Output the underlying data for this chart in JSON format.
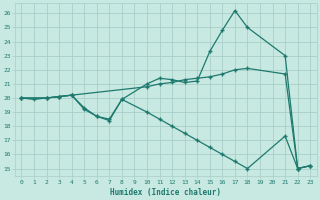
{
  "xlabel": "Humidex (Indice chaleur)",
  "bg_color": "#c8e8e2",
  "grid_color": "#a8cfc8",
  "line_color": "#1e7a6e",
  "xlim": [
    -0.5,
    23.5
  ],
  "ylim": [
    14.5,
    26.7
  ],
  "yticks": [
    15,
    16,
    17,
    18,
    19,
    20,
    21,
    22,
    23,
    24,
    25,
    26
  ],
  "xticks": [
    0,
    1,
    2,
    3,
    4,
    5,
    6,
    7,
    8,
    9,
    10,
    11,
    12,
    13,
    14,
    15,
    16,
    17,
    18,
    19,
    20,
    21,
    22,
    23
  ],
  "line1_x": [
    0,
    1,
    2,
    3,
    4,
    5,
    6,
    7,
    8,
    10,
    11,
    12,
    13,
    14,
    15,
    16,
    17,
    18,
    21,
    22,
    23
  ],
  "line1_y": [
    20,
    19.9,
    20,
    20.1,
    20.2,
    19.3,
    18.7,
    18.5,
    19.9,
    21.0,
    21.4,
    21.3,
    21.1,
    21.2,
    23.3,
    24.8,
    26.2,
    25.0,
    23.0,
    15.0,
    15.2
  ],
  "line2_x": [
    0,
    2,
    3,
    4,
    10,
    11,
    12,
    13,
    14,
    15,
    16,
    17,
    18,
    21,
    22,
    23
  ],
  "line2_y": [
    20,
    20,
    20.1,
    20.2,
    20.8,
    21.0,
    21.1,
    21.3,
    21.4,
    21.5,
    21.7,
    22.0,
    22.1,
    21.7,
    15.0,
    15.2
  ],
  "line3_x": [
    0,
    2,
    3,
    4,
    5,
    6,
    7,
    8,
    10,
    11,
    12,
    13,
    14,
    15,
    16,
    17,
    18,
    21,
    22,
    23
  ],
  "line3_y": [
    20,
    20,
    20.1,
    20.2,
    19.2,
    18.7,
    18.4,
    19.9,
    19.0,
    18.5,
    18.0,
    17.5,
    17.0,
    16.5,
    16.0,
    15.5,
    15.0,
    17.3,
    15.0,
    15.2
  ]
}
